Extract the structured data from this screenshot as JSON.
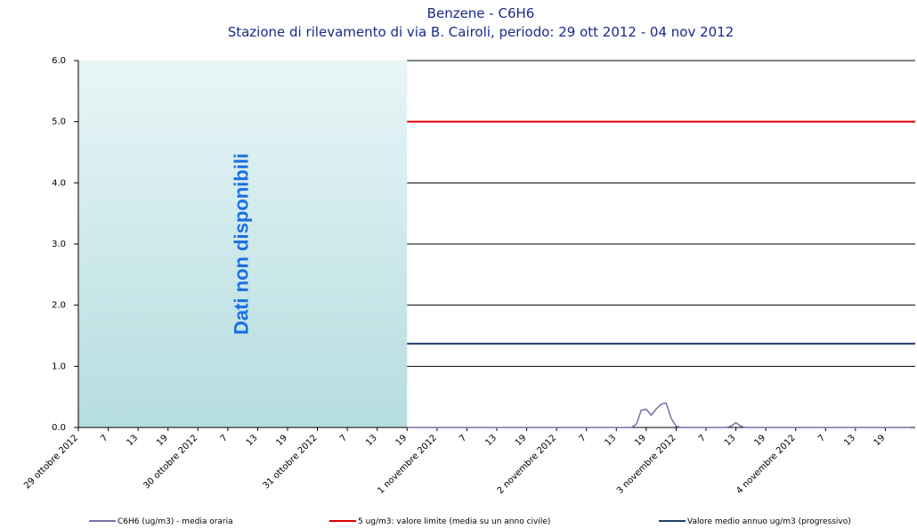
{
  "chart_data": {
    "type": "line",
    "title": "Benzene - C6H6",
    "subtitle": "Stazione di rilevamento di via B. Cairoli, periodo: 29 ott 2012 - 04 nov 2012",
    "xlim": [
      0,
      168
    ],
    "xticks": [
      {
        "value": 0,
        "label": "29 ottobre 2012"
      },
      {
        "value": 6,
        "label": "7"
      },
      {
        "value": 12,
        "label": "13"
      },
      {
        "value": 18,
        "label": "19"
      },
      {
        "value": 24,
        "label": "30 ottobre 2012"
      },
      {
        "value": 30,
        "label": "7"
      },
      {
        "value": 36,
        "label": "13"
      },
      {
        "value": 42,
        "label": "19"
      },
      {
        "value": 48,
        "label": "31 ottobre 2012"
      },
      {
        "value": 54,
        "label": "7"
      },
      {
        "value": 60,
        "label": "13"
      },
      {
        "value": 66,
        "label": "19"
      },
      {
        "value": 72,
        "label": "1 novembre 2012"
      },
      {
        "value": 78,
        "label": "7"
      },
      {
        "value": 84,
        "label": "13"
      },
      {
        "value": 90,
        "label": "19"
      },
      {
        "value": 96,
        "label": "2 novembre 2012"
      },
      {
        "value": 102,
        "label": "7"
      },
      {
        "value": 108,
        "label": "13"
      },
      {
        "value": 114,
        "label": "19"
      },
      {
        "value": 120,
        "label": "3 novembre 2012"
      },
      {
        "value": 126,
        "label": "7"
      },
      {
        "value": 132,
        "label": "13"
      },
      {
        "value": 138,
        "label": "19"
      },
      {
        "value": 144,
        "label": "4 novembre 2012"
      },
      {
        "value": 150,
        "label": "7"
      },
      {
        "value": 156,
        "label": "13"
      },
      {
        "value": 162,
        "label": "19"
      }
    ],
    "ylim": [
      0,
      6
    ],
    "yticks": [
      {
        "value": 0,
        "label": "0.0"
      },
      {
        "value": 1,
        "label": "1.0"
      },
      {
        "value": 2,
        "label": "2.0"
      },
      {
        "value": 3,
        "label": "3.0"
      },
      {
        "value": 4,
        "label": "4.0"
      },
      {
        "value": 5,
        "label": "5.0"
      },
      {
        "value": 6,
        "label": "6.0"
      }
    ],
    "grid": true,
    "annotations": [
      {
        "text": "Dati non disponibili",
        "x_range": [
          0,
          66
        ]
      }
    ],
    "series": [
      {
        "name": "C6H6 (ug/m3)  - media oraria",
        "color": "#7a70a8",
        "values": [
          null,
          null,
          null,
          null,
          null,
          null,
          null,
          null,
          null,
          null,
          null,
          null,
          null,
          null,
          null,
          null,
          null,
          null,
          null,
          null,
          null,
          null,
          null,
          null,
          null,
          null,
          null,
          null,
          null,
          null,
          null,
          null,
          null,
          null,
          null,
          null,
          null,
          null,
          null,
          null,
          null,
          null,
          null,
          null,
          null,
          null,
          null,
          null,
          null,
          null,
          null,
          null,
          null,
          null,
          null,
          null,
          null,
          null,
          null,
          null,
          null,
          null,
          null,
          null,
          null,
          null,
          0,
          0,
          0,
          0,
          0,
          0,
          0,
          0,
          0,
          0,
          0,
          0,
          0,
          0,
          0,
          0,
          0,
          0,
          0,
          0,
          0,
          0,
          0,
          0,
          0,
          0,
          0,
          0,
          0,
          0,
          0,
          0,
          0,
          0,
          0,
          0,
          0,
          0,
          0,
          0,
          0,
          0,
          0,
          0,
          0,
          0,
          0.05,
          0.28,
          0.3,
          0.2,
          0.3,
          0.38,
          0.4,
          0.15,
          0.02,
          0,
          0,
          0,
          0,
          0,
          0,
          0,
          0,
          0,
          0,
          0.02,
          0.08,
          0.02,
          0,
          0,
          0,
          0,
          0,
          0,
          0,
          0,
          0,
          0,
          0,
          0,
          0,
          0,
          0,
          0,
          0,
          0,
          0,
          0,
          0,
          0,
          0,
          0,
          0,
          0,
          0,
          0,
          0,
          0,
          0,
          0,
          0,
          0
        ]
      }
    ],
    "reference_lines": [
      {
        "name": "5 ug/m3: valore limite (media su un anno civile)",
        "color": "#e00000",
        "value": 5
      },
      {
        "name": "Valore medio annuo ug/m3 (progressivo)",
        "color": "#1f3f6e",
        "value": 1.37
      }
    ]
  }
}
